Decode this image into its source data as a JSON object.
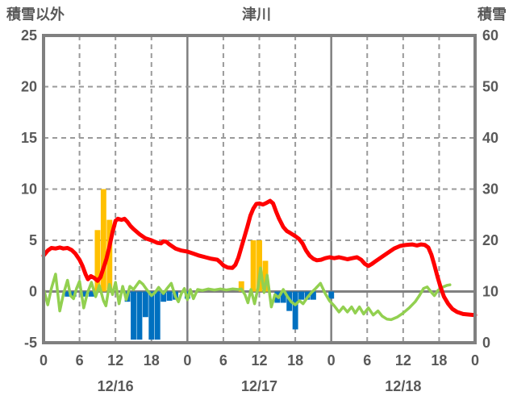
{
  "header": {
    "left_axis_label": "積雪以外",
    "title": "津川",
    "right_axis_label": "積雪"
  },
  "colors": {
    "frame": "#808080",
    "grid_dashed": "#9a9a9a",
    "zero_line": "#808080",
    "text": "#595959",
    "red_line": "#ff0000",
    "green_line": "#92d050",
    "purple_line": "#7030a0",
    "orange_bar": "#ffc000",
    "blue_bar": "#0070c0",
    "background": "#ffffff"
  },
  "chart_data": {
    "type": "bar",
    "subtype": "composite-bar-and-line",
    "title": "津川",
    "xlabel": "",
    "ylabel_left": "積雪以外",
    "ylabel_right": "積雪",
    "left_axis": {
      "min": -5,
      "max": 25,
      "ticks": [
        25,
        20,
        15,
        10,
        5,
        0,
        -5
      ]
    },
    "right_axis": {
      "min": 0,
      "max": 60,
      "ticks": [
        60,
        50,
        40,
        30,
        20,
        10,
        0
      ]
    },
    "x_axis": {
      "total_hours": 72,
      "tick_step_hours": 6,
      "hour_tick_labels": [
        "0",
        "6",
        "12",
        "18",
        "0",
        "6",
        "12",
        "18",
        "0",
        "6",
        "12",
        "18",
        "0"
      ],
      "date_labels": [
        "12/16",
        "12/17",
        "12/18"
      ],
      "date_label_center_hours": [
        12,
        36,
        60
      ],
      "solid_vertical_hours": [
        24,
        48
      ],
      "dashed_vertical_hours": [
        6,
        12,
        18,
        30,
        36,
        42,
        54,
        60,
        66
      ],
      "dashed_horizontal_values": [
        5,
        10,
        15,
        20
      ]
    },
    "grid": {
      "on": true,
      "zero_line_value": 0,
      "legend": "none"
    },
    "series": [
      {
        "name": "orange-bars",
        "type": "bar",
        "axis": "left",
        "color": "#ffc000",
        "points": [
          [
            9,
            6
          ],
          [
            10,
            10
          ],
          [
            11,
            7
          ],
          [
            33,
            1
          ],
          [
            35,
            5
          ],
          [
            36,
            5
          ],
          [
            37,
            3
          ]
        ]
      },
      {
        "name": "blue-bars",
        "type": "bar",
        "axis": "left",
        "color": "#0070c0",
        "points": [
          [
            4,
            -0.5
          ],
          [
            5,
            -0.5
          ],
          [
            7,
            -0.5
          ],
          [
            8,
            -0.5
          ],
          [
            14,
            -1.0
          ],
          [
            15,
            -4.7
          ],
          [
            16,
            -4.7
          ],
          [
            17,
            -2.5
          ],
          [
            18,
            -4.7
          ],
          [
            19,
            -4.7
          ],
          [
            20,
            -1.0
          ],
          [
            21,
            -0.9
          ],
          [
            22,
            -0.8
          ],
          [
            24,
            -0.7
          ],
          [
            39,
            -1.1
          ],
          [
            40,
            -1.1
          ],
          [
            41,
            -1.9
          ],
          [
            42,
            -3.7
          ],
          [
            43,
            -0.8
          ],
          [
            44,
            -0.8
          ],
          [
            45,
            -0.8
          ],
          [
            48,
            -0.7
          ]
        ]
      },
      {
        "name": "red-line",
        "type": "line",
        "axis": "left",
        "color": "#ff0000",
        "width": 5,
        "points": [
          [
            0,
            3.5
          ],
          [
            0.7,
            4.0
          ],
          [
            1.3,
            4.25
          ],
          [
            2,
            4.2
          ],
          [
            2.7,
            4.3
          ],
          [
            3.3,
            4.2
          ],
          [
            4,
            4.25
          ],
          [
            4.7,
            4.05
          ],
          [
            5.3,
            3.7
          ],
          [
            6,
            3.1
          ],
          [
            6.5,
            2.5
          ],
          [
            7,
            1.7
          ],
          [
            7.4,
            1.2
          ],
          [
            7.9,
            1.5
          ],
          [
            8.4,
            1.35
          ],
          [
            9,
            1.05
          ],
          [
            9.5,
            1.4
          ],
          [
            10,
            2.3
          ],
          [
            10.5,
            3.2
          ],
          [
            11,
            4.4
          ],
          [
            11.5,
            5.8
          ],
          [
            12,
            6.9
          ],
          [
            12.4,
            7.1
          ],
          [
            13,
            7.0
          ],
          [
            13.5,
            7.1
          ],
          [
            14,
            6.8
          ],
          [
            14.5,
            6.4
          ],
          [
            15,
            6.1
          ],
          [
            16,
            5.6
          ],
          [
            17,
            5.2
          ],
          [
            18,
            5.0
          ],
          [
            19,
            4.75
          ],
          [
            19.6,
            4.7
          ],
          [
            20,
            4.9
          ],
          [
            20.5,
            4.85
          ],
          [
            21,
            4.6
          ],
          [
            22,
            4.2
          ],
          [
            23,
            4.0
          ],
          [
            24,
            3.9
          ],
          [
            25,
            3.7
          ],
          [
            26,
            3.5
          ],
          [
            27,
            3.35
          ],
          [
            28,
            3.2
          ],
          [
            29,
            3.1
          ],
          [
            29.5,
            2.85
          ],
          [
            30,
            2.55
          ],
          [
            30.7,
            2.35
          ],
          [
            31.5,
            2.3
          ],
          [
            32,
            2.6
          ],
          [
            32.5,
            3.3
          ],
          [
            33,
            4.3
          ],
          [
            33.5,
            5.3
          ],
          [
            34,
            6.3
          ],
          [
            34.5,
            7.4
          ],
          [
            35,
            8.1
          ],
          [
            35.5,
            8.55
          ],
          [
            36,
            8.6
          ],
          [
            36.6,
            8.5
          ],
          [
            37.2,
            8.65
          ],
          [
            37.8,
            8.85
          ],
          [
            38.3,
            8.6
          ],
          [
            38.8,
            7.8
          ],
          [
            39.3,
            7.1
          ],
          [
            40,
            6.3
          ],
          [
            40.6,
            5.9
          ],
          [
            41.2,
            5.7
          ],
          [
            42,
            5.4
          ],
          [
            42.6,
            5.15
          ],
          [
            43.2,
            4.7
          ],
          [
            43.8,
            4.0
          ],
          [
            44.4,
            3.5
          ],
          [
            45,
            3.2
          ],
          [
            45.6,
            3.05
          ],
          [
            46.3,
            3.1
          ],
          [
            47,
            3.25
          ],
          [
            47.7,
            3.35
          ],
          [
            48.5,
            3.25
          ],
          [
            49.3,
            3.35
          ],
          [
            50,
            3.25
          ],
          [
            50.7,
            3.15
          ],
          [
            51.5,
            3.25
          ],
          [
            52.3,
            3.35
          ],
          [
            53,
            3.1
          ],
          [
            53.6,
            2.7
          ],
          [
            54.2,
            2.5
          ],
          [
            54.8,
            2.7
          ],
          [
            55.5,
            3.0
          ],
          [
            56.5,
            3.4
          ],
          [
            57.5,
            3.8
          ],
          [
            58.5,
            4.2
          ],
          [
            59.5,
            4.45
          ],
          [
            60.5,
            4.55
          ],
          [
            61.5,
            4.6
          ],
          [
            62.3,
            4.5
          ],
          [
            63,
            4.6
          ],
          [
            63.6,
            4.55
          ],
          [
            64.2,
            4.3
          ],
          [
            64.7,
            3.6
          ],
          [
            65.2,
            2.6
          ],
          [
            65.7,
            1.5
          ],
          [
            66.2,
            0.5
          ],
          [
            66.8,
            -0.5
          ],
          [
            67.5,
            -1.2
          ],
          [
            68.2,
            -1.7
          ],
          [
            69,
            -2.0
          ],
          [
            70,
            -2.2
          ],
          [
            71,
            -2.25
          ],
          [
            72,
            -2.3
          ]
        ]
      },
      {
        "name": "green-line",
        "type": "line",
        "axis": "left",
        "color": "#92d050",
        "width": 3.5,
        "points": [
          [
            0,
            0.3
          ],
          [
            0.7,
            -1.3
          ],
          [
            1.3,
            0.3
          ],
          [
            2,
            1.7
          ],
          [
            2.7,
            -1.9
          ],
          [
            3.3,
            -0.3
          ],
          [
            4,
            1.1
          ],
          [
            4.5,
            -0.4
          ],
          [
            5,
            -0.7
          ],
          [
            5.5,
            0.3
          ],
          [
            6,
            1.0
          ],
          [
            6.7,
            -1.6
          ],
          [
            7.3,
            -0.2
          ],
          [
            8,
            0.9
          ],
          [
            8.7,
            -0.5
          ],
          [
            9.3,
            0.6
          ],
          [
            10,
            -0.9
          ],
          [
            10.4,
            -1.4
          ],
          [
            11,
            0.7
          ],
          [
            11.5,
            -0.3
          ],
          [
            12,
            0.9
          ],
          [
            12.6,
            -1.2
          ],
          [
            13.2,
            0.5
          ],
          [
            13.8,
            -0.8
          ],
          [
            14.4,
            0.5
          ],
          [
            15,
            0.2
          ],
          [
            15.5,
            0.6
          ],
          [
            16,
            1.0
          ],
          [
            16.6,
            0.7
          ],
          [
            17.2,
            0.2
          ],
          [
            18,
            -0.4
          ],
          [
            18.6,
            -0.1
          ],
          [
            19.2,
            0.4
          ],
          [
            20,
            -0.2
          ],
          [
            20.6,
            0.3
          ],
          [
            21.3,
            0.8
          ],
          [
            22,
            -0.5
          ],
          [
            22.5,
            -1.0
          ],
          [
            23,
            -0.2
          ],
          [
            23.5,
            0.3
          ],
          [
            24,
            -0.8
          ],
          [
            24.5,
            0.2
          ],
          [
            25,
            -0.7
          ],
          [
            25.7,
            0.2
          ],
          [
            26.5,
            0.1
          ],
          [
            27.5,
            0.25
          ],
          [
            28.5,
            0.15
          ],
          [
            29.5,
            0.25
          ],
          [
            30.5,
            0.15
          ],
          [
            31.5,
            0.25
          ],
          [
            32.5,
            0.2
          ],
          [
            33,
            0.25
          ],
          [
            33.6,
            -0.3
          ],
          [
            34.1,
            -1.1
          ],
          [
            34.6,
            0.2
          ],
          [
            35.2,
            -1.2
          ],
          [
            35.8,
            0.4
          ],
          [
            36.2,
            2.3
          ],
          [
            36.8,
            -0.1
          ],
          [
            37.3,
            1.6
          ],
          [
            38,
            -1.5
          ],
          [
            38.6,
            -0.3
          ],
          [
            39.2,
            -0.6
          ],
          [
            40,
            0.2
          ],
          [
            40.7,
            -0.5
          ],
          [
            41.3,
            -1.0
          ],
          [
            42,
            -1.3
          ],
          [
            42.7,
            -0.9
          ],
          [
            43.3,
            -1.2
          ],
          [
            44,
            -0.6
          ],
          [
            44.7,
            -0.1
          ],
          [
            45.4,
            0.3
          ],
          [
            46.2,
            0.8
          ],
          [
            47,
            -0.2
          ],
          [
            47.7,
            -0.9
          ],
          [
            48.5,
            -1.4
          ],
          [
            49.3,
            -2.0
          ],
          [
            50,
            -1.5
          ],
          [
            50.7,
            -2.0
          ],
          [
            51.4,
            -1.5
          ],
          [
            52,
            -2.1
          ],
          [
            52.7,
            -1.5
          ],
          [
            53.4,
            -2.2
          ],
          [
            54.2,
            -1.6
          ],
          [
            55,
            -2.3
          ],
          [
            55.8,
            -1.9
          ],
          [
            56.5,
            -2.4
          ],
          [
            57.3,
            -2.7
          ],
          [
            58,
            -2.75
          ],
          [
            59,
            -2.5
          ],
          [
            60,
            -2.1
          ],
          [
            61,
            -1.6
          ],
          [
            62,
            -1.0
          ],
          [
            62.7,
            -0.4
          ],
          [
            63.4,
            0.3
          ],
          [
            64,
            0.45
          ],
          [
            64.6,
            0.0
          ],
          [
            65.2,
            -0.4
          ],
          [
            65.8,
            0.1
          ],
          [
            66.5,
            0.4
          ],
          [
            67.3,
            0.6
          ],
          [
            67.8,
            0.65
          ]
        ]
      },
      {
        "name": "purple-line",
        "type": "line",
        "axis": "left",
        "color": "#7030a0",
        "width": 3,
        "points": [
          [
            0,
            -5
          ],
          [
            72,
            -5
          ]
        ]
      }
    ]
  }
}
